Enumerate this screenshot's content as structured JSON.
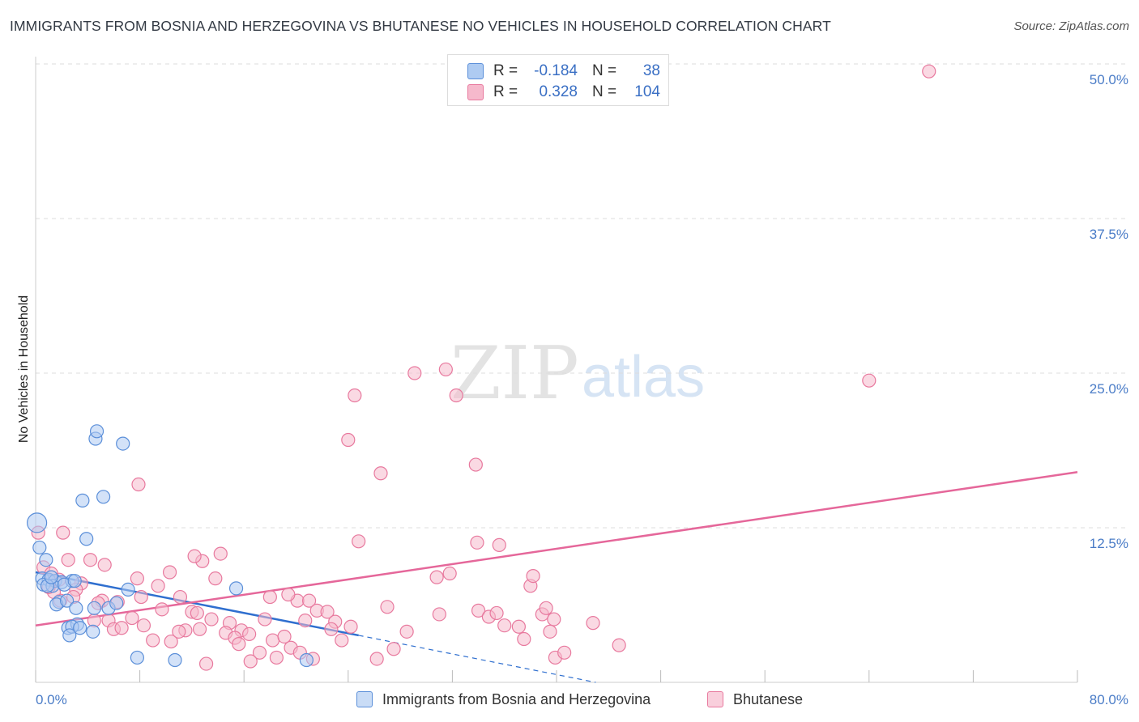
{
  "title": "IMMIGRANTS FROM BOSNIA AND HERZEGOVINA VS BHUTANESE NO VEHICLES IN HOUSEHOLD CORRELATION CHART",
  "source": "Source: ZipAtlas.com",
  "watermark": {
    "zip": "ZIP",
    "atlas": "atlas"
  },
  "colors": {
    "blue_fill": "#aecbf2",
    "blue_stroke": "#5b8fd9",
    "blue_line": "#2f6fcf",
    "pink_fill": "#f6b9cc",
    "pink_stroke": "#e8799e",
    "pink_line": "#e5679a",
    "tick_text": "#4a7cc7",
    "grid": "#dddddd"
  },
  "legend": {
    "rows": [
      {
        "r_label": "R =",
        "r_value": "-0.184",
        "n_label": "N =",
        "n_value": "38"
      },
      {
        "r_label": "R =",
        "r_value": "0.328",
        "n_label": "N =",
        "n_value": "104"
      }
    ]
  },
  "bottom_legend": [
    {
      "label": "Immigrants from Bosnia and Herzegovina"
    },
    {
      "label": "Bhutanese"
    }
  ],
  "chart_data": {
    "type": "scatter",
    "title": "IMMIGRANTS FROM BOSNIA AND HERZEGOVINA VS BHUTANESE NO VEHICLES IN HOUSEHOLD CORRELATION CHART",
    "xlabel": "",
    "ylabel": "No Vehicles in Household",
    "xlim": [
      0,
      80
    ],
    "ylim": [
      0,
      50
    ],
    "x_tick_labels": [
      "0.0%",
      "80.0%"
    ],
    "y_ticks": [
      12.5,
      25.0,
      37.5,
      50.0
    ],
    "y_tick_labels": [
      "12.5%",
      "25.0%",
      "37.5%",
      "50.0%"
    ],
    "grid": true,
    "series": [
      {
        "name": "Immigrants from Bosnia and Herzegovina",
        "color": "blue",
        "R": -0.184,
        "N": 38,
        "trend": {
          "x0": 0,
          "y0": 8.9,
          "x1": 24.8,
          "y1": 3.8,
          "dashed_to_x": 43,
          "dashed_to_y": 0
        },
        "points": [
          [
            0.1,
            12.9
          ],
          [
            0.3,
            10.9
          ],
          [
            0.8,
            9.9
          ],
          [
            0.5,
            8.4
          ],
          [
            1.0,
            8.3
          ],
          [
            1.5,
            8.2
          ],
          [
            2.0,
            8.1
          ],
          [
            2.8,
            8.2
          ],
          [
            0.6,
            7.9
          ],
          [
            1.3,
            7.8
          ],
          [
            2.2,
            7.9
          ],
          [
            1.8,
            6.5
          ],
          [
            1.6,
            6.3
          ],
          [
            2.4,
            6.6
          ],
          [
            3.1,
            6.0
          ],
          [
            4.5,
            6.0
          ],
          [
            5.6,
            6.0
          ],
          [
            6.2,
            6.4
          ],
          [
            7.1,
            7.5
          ],
          [
            2.5,
            4.4
          ],
          [
            3.2,
            4.7
          ],
          [
            2.8,
            4.5
          ],
          [
            3.4,
            4.4
          ],
          [
            2.6,
            3.8
          ],
          [
            4.4,
            4.1
          ],
          [
            4.6,
            19.7
          ],
          [
            4.7,
            20.3
          ],
          [
            6.7,
            19.3
          ],
          [
            5.2,
            15.0
          ],
          [
            3.6,
            14.7
          ],
          [
            3.9,
            11.6
          ],
          [
            7.8,
            2.0
          ],
          [
            10.7,
            1.8
          ],
          [
            20.8,
            1.8
          ],
          [
            15.4,
            7.6
          ],
          [
            0.9,
            7.8
          ],
          [
            1.2,
            8.5
          ],
          [
            3.0,
            8.2
          ]
        ]
      },
      {
        "name": "Bhutanese",
        "color": "pink",
        "R": 0.328,
        "N": 104,
        "trend": {
          "x0": 0,
          "y0": 4.6,
          "x1": 80,
          "y1": 17.0
        },
        "points": [
          [
            0.2,
            12.1
          ],
          [
            2.1,
            12.1
          ],
          [
            0.6,
            9.3
          ],
          [
            1.2,
            8.8
          ],
          [
            2.5,
            9.9
          ],
          [
            4.2,
            9.9
          ],
          [
            5.3,
            9.5
          ],
          [
            7.8,
            8.4
          ],
          [
            10.3,
            8.9
          ],
          [
            12.8,
            9.8
          ],
          [
            14.2,
            10.4
          ],
          [
            13.8,
            8.4
          ],
          [
            9.4,
            7.8
          ],
          [
            8.1,
            6.9
          ],
          [
            6.3,
            6.5
          ],
          [
            5.1,
            6.6
          ],
          [
            4.8,
            6.4
          ],
          [
            3.5,
            8.0
          ],
          [
            3.1,
            7.5
          ],
          [
            2.9,
            6.9
          ],
          [
            1.9,
            6.6
          ],
          [
            1.4,
            7.3
          ],
          [
            1.0,
            7.7
          ],
          [
            4.5,
            5.0
          ],
          [
            5.6,
            5.0
          ],
          [
            7.4,
            5.2
          ],
          [
            8.3,
            4.6
          ],
          [
            9.7,
            5.9
          ],
          [
            11.1,
            6.9
          ],
          [
            12.0,
            5.7
          ],
          [
            12.4,
            5.6
          ],
          [
            13.5,
            5.1
          ],
          [
            14.9,
            4.8
          ],
          [
            15.8,
            4.2
          ],
          [
            16.4,
            3.9
          ],
          [
            17.6,
            5.1
          ],
          [
            18.2,
            3.4
          ],
          [
            19.1,
            3.7
          ],
          [
            19.6,
            2.8
          ],
          [
            20.1,
            6.6
          ],
          [
            20.7,
            5.0
          ],
          [
            21.0,
            6.6
          ],
          [
            21.6,
            5.8
          ],
          [
            22.4,
            5.7
          ],
          [
            23.0,
            4.9
          ],
          [
            23.5,
            3.4
          ],
          [
            24.2,
            4.5
          ],
          [
            18.0,
            6.9
          ],
          [
            19.4,
            7.1
          ],
          [
            17.2,
            2.4
          ],
          [
            16.5,
            1.7
          ],
          [
            18.5,
            2.0
          ],
          [
            20.3,
            2.4
          ],
          [
            21.3,
            1.9
          ],
          [
            22.7,
            4.3
          ],
          [
            9.0,
            3.4
          ],
          [
            10.4,
            3.3
          ],
          [
            11.5,
            4.2
          ],
          [
            12.6,
            4.3
          ],
          [
            13.1,
            1.5
          ],
          [
            14.6,
            4.0
          ],
          [
            15.3,
            3.6
          ],
          [
            15.6,
            3.1
          ],
          [
            7.9,
            16.0
          ],
          [
            12.2,
            10.2
          ],
          [
            11.0,
            4.1
          ],
          [
            6.0,
            4.3
          ],
          [
            6.6,
            4.4
          ],
          [
            24.0,
            19.6
          ],
          [
            24.5,
            23.2
          ],
          [
            26.5,
            16.9
          ],
          [
            29.1,
            25.0
          ],
          [
            31.5,
            25.3
          ],
          [
            32.3,
            23.2
          ],
          [
            33.8,
            17.6
          ],
          [
            24.8,
            11.4
          ],
          [
            33.9,
            11.3
          ],
          [
            35.6,
            11.1
          ],
          [
            30.8,
            8.5
          ],
          [
            31.8,
            8.8
          ],
          [
            38.0,
            7.8
          ],
          [
            38.2,
            8.6
          ],
          [
            27.0,
            6.1
          ],
          [
            31.0,
            5.5
          ],
          [
            34.0,
            5.8
          ],
          [
            34.8,
            5.3
          ],
          [
            37.1,
            4.5
          ],
          [
            36.0,
            4.6
          ],
          [
            35.4,
            5.6
          ],
          [
            38.9,
            5.5
          ],
          [
            39.2,
            6.0
          ],
          [
            39.8,
            5.1
          ],
          [
            39.5,
            4.1
          ],
          [
            37.5,
            3.5
          ],
          [
            28.5,
            4.1
          ],
          [
            27.5,
            2.7
          ],
          [
            26.2,
            1.9
          ],
          [
            39.9,
            2.0
          ],
          [
            40.6,
            2.4
          ],
          [
            42.8,
            4.8
          ],
          [
            44.8,
            3.0
          ],
          [
            64.0,
            24.4
          ],
          [
            68.6,
            49.4
          ],
          [
            1.8,
            8.3
          ]
        ]
      }
    ]
  }
}
